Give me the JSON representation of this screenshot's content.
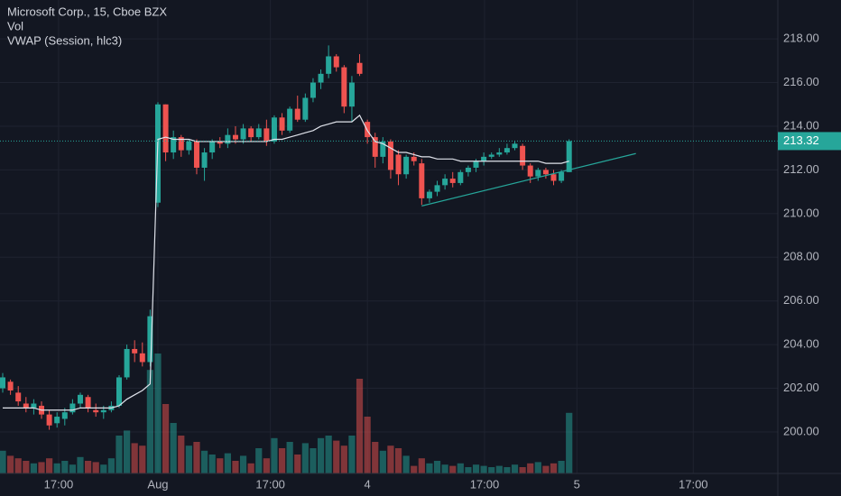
{
  "chart_data": {
    "type": "candlestick",
    "title": "Microsoft Corp., 15, Cboe BZX",
    "indicators": [
      "Vol",
      "VWAP (Session, hlc3)"
    ],
    "up_color": "#26a69a",
    "down_color": "#ef5350",
    "vwap_color": "#e0e3eb",
    "trendline_color": "#26a69a",
    "xlim": [
      -0.35,
      99.9
    ],
    "ylim": [
      198.1,
      219.78
    ],
    "vlim": [
      0,
      100
    ],
    "yticks": [
      {
        "value": 200,
        "label": "200.00"
      },
      {
        "value": 202,
        "label": "202.00"
      },
      {
        "value": 204,
        "label": "204.00"
      },
      {
        "value": 206,
        "label": "206.00"
      },
      {
        "value": 208,
        "label": "208.00"
      },
      {
        "value": 210,
        "label": "210.00"
      },
      {
        "value": 212,
        "label": "212.00"
      },
      {
        "value": 214,
        "label": "214.00"
      },
      {
        "value": 216,
        "label": "216.00"
      },
      {
        "value": 218,
        "label": "218.00"
      }
    ],
    "xticks": [
      {
        "value": 7.2,
        "label": "17:00"
      },
      {
        "value": 20,
        "label": "Aug"
      },
      {
        "value": 34.5,
        "label": "17:00"
      },
      {
        "value": 47,
        "label": "4"
      },
      {
        "value": 62.1,
        "label": "17:00"
      },
      {
        "value": 74,
        "label": "5"
      },
      {
        "value": 89,
        "label": "17:00"
      }
    ],
    "grid": true,
    "last_price": {
      "value": 213.32,
      "label": "213.32"
    },
    "open": [
      202.0,
      202.3,
      201.8,
      201.3,
      201.1,
      201.2,
      200.8,
      200.4,
      200.6,
      200.9,
      201.3,
      201.6,
      201.0,
      200.9,
      201.0,
      201.2,
      202.5,
      203.8,
      203.6,
      203.2,
      210.5,
      215.0,
      212.8,
      213.5,
      212.9,
      213.3,
      212.1,
      212.8,
      213.3,
      213.2,
      213.6,
      213.4,
      213.9,
      213.5,
      213.9,
      213.3,
      214.4,
      213.8,
      214.8,
      214.3,
      215.3,
      216.0,
      216.4,
      217.2,
      216.7,
      214.9,
      216.9,
      214.2,
      213.5,
      212.6,
      213.3,
      212.7,
      211.8,
      212.6,
      212.3,
      210.7,
      211.0,
      211.3,
      211.6,
      211.4,
      211.9,
      212.1,
      212.4,
      212.6,
      212.7,
      212.8,
      213.0,
      213.1,
      212.2,
      211.7,
      212.0,
      211.8,
      211.5,
      211.9
    ],
    "high": [
      202.7,
      202.4,
      202.1,
      201.6,
      201.5,
      201.4,
      201.0,
      200.9,
      201.1,
      201.5,
      201.8,
      201.7,
      201.3,
      201.2,
      201.4,
      202.6,
      204.0,
      204.2,
      204.1,
      205.6,
      215.1,
      215.0,
      213.8,
      213.6,
      213.4,
      213.4,
      213.0,
      213.4,
      213.5,
      213.9,
      214.0,
      214.1,
      214.0,
      214.1,
      214.3,
      214.5,
      214.6,
      214.9,
      215.4,
      215.5,
      216.2,
      216.6,
      217.7,
      217.3,
      216.8,
      216.3,
      217.3,
      214.3,
      213.7,
      213.5,
      213.4,
      212.9,
      212.7,
      212.8,
      212.5,
      211.1,
      211.5,
      211.8,
      211.9,
      212.0,
      212.2,
      212.5,
      212.8,
      212.8,
      213.0,
      213.2,
      213.3,
      213.2,
      212.3,
      212.1,
      212.1,
      212.0,
      212.0,
      213.4
    ],
    "low": [
      201.8,
      201.7,
      201.2,
      200.9,
      200.8,
      200.6,
      200.1,
      200.2,
      200.3,
      200.8,
      201.1,
      200.9,
      200.7,
      200.6,
      200.9,
      201.1,
      202.4,
      203.2,
      203.0,
      203.0,
      210.3,
      212.4,
      212.5,
      212.6,
      212.7,
      211.8,
      211.5,
      212.5,
      213.0,
      213.0,
      213.2,
      213.2,
      213.3,
      213.4,
      213.1,
      213.2,
      213.6,
      213.7,
      214.2,
      214.2,
      215.1,
      215.7,
      216.2,
      216.5,
      214.6,
      214.2,
      216.3,
      213.2,
      212.1,
      212.3,
      211.6,
      211.3,
      211.6,
      212.2,
      210.4,
      210.5,
      210.8,
      211.1,
      211.2,
      211.3,
      211.7,
      211.9,
      212.2,
      212.5,
      212.6,
      212.7,
      212.9,
      212.0,
      211.4,
      211.5,
      211.6,
      211.3,
      211.4,
      211.9
    ],
    "close": [
      202.5,
      201.9,
      201.4,
      201.1,
      201.3,
      200.8,
      200.3,
      200.7,
      200.9,
      201.3,
      201.7,
      201.1,
      200.9,
      201.0,
      201.2,
      202.5,
      203.8,
      203.6,
      203.2,
      205.3,
      215.0,
      212.8,
      213.5,
      212.9,
      213.3,
      212.1,
      212.8,
      213.3,
      213.2,
      213.6,
      213.4,
      213.9,
      213.5,
      213.9,
      213.3,
      214.4,
      213.8,
      214.8,
      214.3,
      215.3,
      216.0,
      216.4,
      217.2,
      216.7,
      214.9,
      216.0,
      216.4,
      213.5,
      212.6,
      213.3,
      212.0,
      211.8,
      212.6,
      212.4,
      210.7,
      211.0,
      211.3,
      211.6,
      211.4,
      211.9,
      212.1,
      212.4,
      212.6,
      212.7,
      212.8,
      213.0,
      213.2,
      212.2,
      211.7,
      212.0,
      211.8,
      211.5,
      211.9,
      213.32
    ],
    "volume": [
      18,
      14,
      12,
      10,
      8,
      9,
      12,
      8,
      10,
      7,
      13,
      10,
      9,
      7,
      12,
      30,
      34,
      24,
      22,
      82,
      95,
      55,
      40,
      30,
      22,
      25,
      18,
      15,
      12,
      16,
      10,
      14,
      8,
      20,
      12,
      28,
      20,
      25,
      15,
      24,
      20,
      28,
      30,
      26,
      22,
      30,
      75,
      45,
      25,
      18,
      22,
      20,
      14,
      6,
      12,
      8,
      10,
      7,
      6,
      8,
      5,
      7,
      6,
      5,
      6,
      5,
      7,
      5,
      8,
      9,
      6,
      8,
      10,
      48
    ],
    "vwap": [
      201.1,
      201.1,
      201.1,
      201.1,
      201.1,
      201.0,
      201.0,
      201.0,
      201.0,
      201.0,
      201.1,
      201.1,
      201.1,
      201.1,
      201.1,
      201.2,
      201.5,
      201.7,
      201.9,
      202.2,
      213.4,
      213.5,
      213.4,
      213.4,
      213.4,
      213.3,
      213.3,
      213.3,
      213.3,
      213.3,
      213.3,
      213.3,
      213.3,
      213.3,
      213.3,
      213.4,
      213.4,
      213.5,
      213.6,
      213.7,
      213.8,
      214.0,
      214.1,
      214.2,
      214.2,
      214.2,
      214.5,
      213.8,
      213.3,
      213.2,
      213.0,
      212.8,
      212.8,
      212.7,
      212.6,
      212.6,
      212.5,
      212.5,
      212.5,
      212.4,
      212.4,
      212.4,
      212.4,
      212.4,
      212.4,
      212.4,
      212.4,
      212.4,
      212.4,
      212.4,
      212.3,
      212.3,
      212.3,
      212.4
    ],
    "trendline": {
      "x": [
        54,
        81.6
      ],
      "y": [
        210.35,
        212.75
      ]
    }
  }
}
